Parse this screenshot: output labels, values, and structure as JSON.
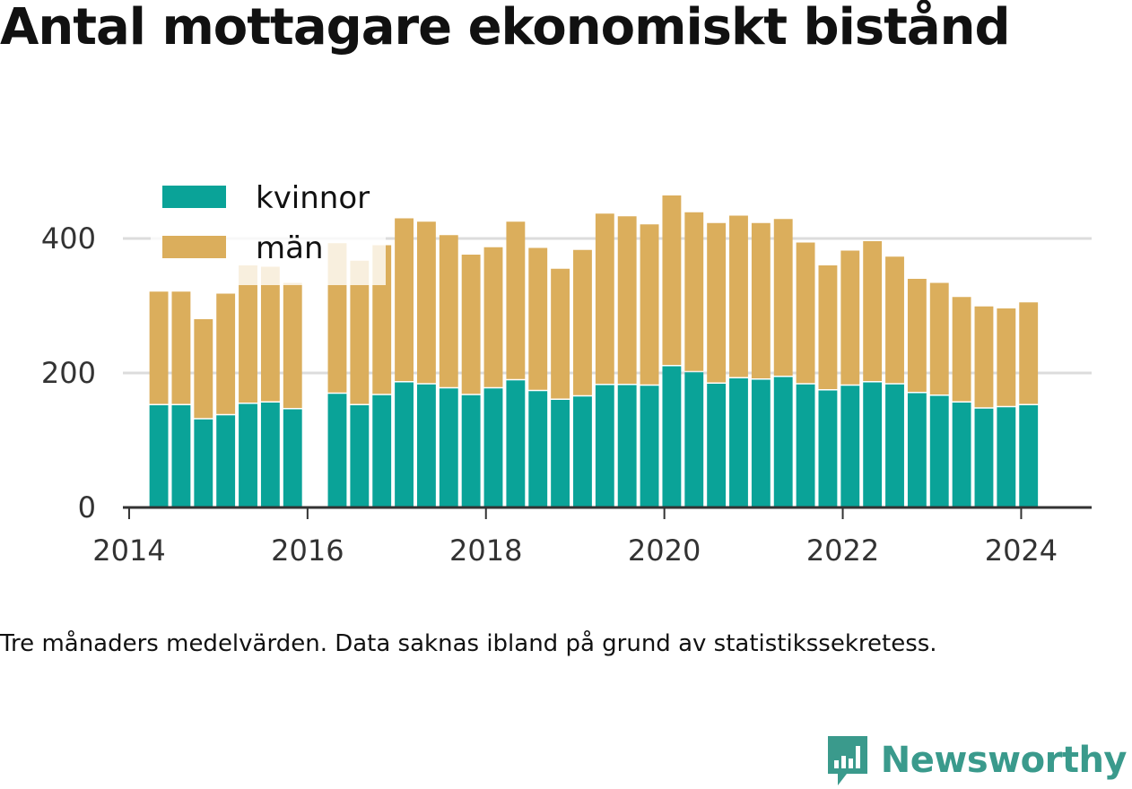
{
  "title": "Antal mottagare ekonomiskt bistånd",
  "note": "Tre månaders medelvärden. Data saknas ibland på grund av statistikssekretess.",
  "brand": {
    "name": "Newsworthy",
    "color": "#3a9a8c"
  },
  "chart_data": {
    "type": "bar",
    "stacked": true,
    "xlim": [
      2013.93,
      2024.79
    ],
    "ylim": [
      0,
      480
    ],
    "x_ticks": [
      2014,
      2016,
      2018,
      2020,
      2022,
      2024
    ],
    "y_ticks": [
      0,
      200,
      400
    ],
    "grid": true,
    "legend_position": "top-left",
    "x": [
      2014.333,
      2014.583,
      2014.833,
      2015.083,
      2015.333,
      2015.583,
      2015.833,
      2016.333,
      2016.583,
      2016.833,
      2017.083,
      2017.333,
      2017.583,
      2017.833,
      2018.083,
      2018.333,
      2018.583,
      2018.833,
      2019.083,
      2019.333,
      2019.583,
      2019.833,
      2020.083,
      2020.333,
      2020.583,
      2020.833,
      2021.083,
      2021.333,
      2021.583,
      2021.833,
      2022.083,
      2022.333,
      2022.583,
      2022.833,
      2023.083,
      2023.333,
      2023.583,
      2023.833,
      2024.083
    ],
    "series": [
      {
        "name": "kvinnor",
        "color": "#0aa398",
        "values": [
          152,
          152,
          131,
          137,
          154,
          156,
          146,
          169,
          152,
          167,
          186,
          183,
          177,
          167,
          177,
          189,
          173,
          160,
          165,
          182,
          182,
          181,
          210,
          201,
          184,
          192,
          190,
          194,
          183,
          174,
          181,
          186,
          183,
          170,
          166,
          156,
          147,
          149,
          152
        ]
      },
      {
        "name": "män",
        "color": "#dbae5c",
        "values": [
          169,
          169,
          149,
          181,
          206,
          202,
          188,
          224,
          215,
          223,
          244,
          242,
          228,
          209,
          210,
          236,
          213,
          195,
          218,
          255,
          251,
          240,
          254,
          238,
          239,
          242,
          233,
          235,
          211,
          186,
          201,
          210,
          190,
          170,
          168,
          157,
          152,
          147,
          153
        ]
      }
    ]
  }
}
